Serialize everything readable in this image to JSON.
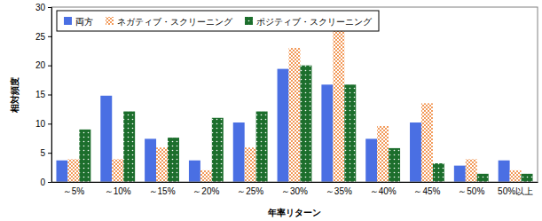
{
  "chart_data": {
    "type": "bar",
    "x_label": "年率リターン",
    "y_label": "相対頻度",
    "categories": [
      "～5%",
      "～10%",
      "～15%",
      "～20%",
      "～25%",
      "～30%",
      "～35%",
      "～40%",
      "～45%",
      "～50%",
      "50%以上"
    ],
    "series": [
      {
        "name": "両方",
        "color": "#4a6fe3",
        "values": [
          3.7,
          14.8,
          7.4,
          3.7,
          10.2,
          19.4,
          16.7,
          7.4,
          10.2,
          2.8,
          3.7
        ]
      },
      {
        "name": "ネガティブ・スクリーニング",
        "color": "#f29a5a",
        "values": [
          3.9,
          3.9,
          5.9,
          2.0,
          5.9,
          23.0,
          27.0,
          9.6,
          13.5,
          3.9,
          2.0
        ]
      },
      {
        "name": "ポジティブ・スクリーニング",
        "color": "#1c6e2c",
        "values": [
          9.0,
          12.1,
          7.6,
          11.0,
          12.1,
          20.0,
          16.7,
          5.8,
          3.2,
          1.4,
          1.4
        ]
      }
    ],
    "ylim": [
      0,
      30
    ],
    "yticks": [
      0,
      5,
      10,
      15,
      20,
      25,
      30
    ],
    "grid": false,
    "legend": "upper left"
  }
}
